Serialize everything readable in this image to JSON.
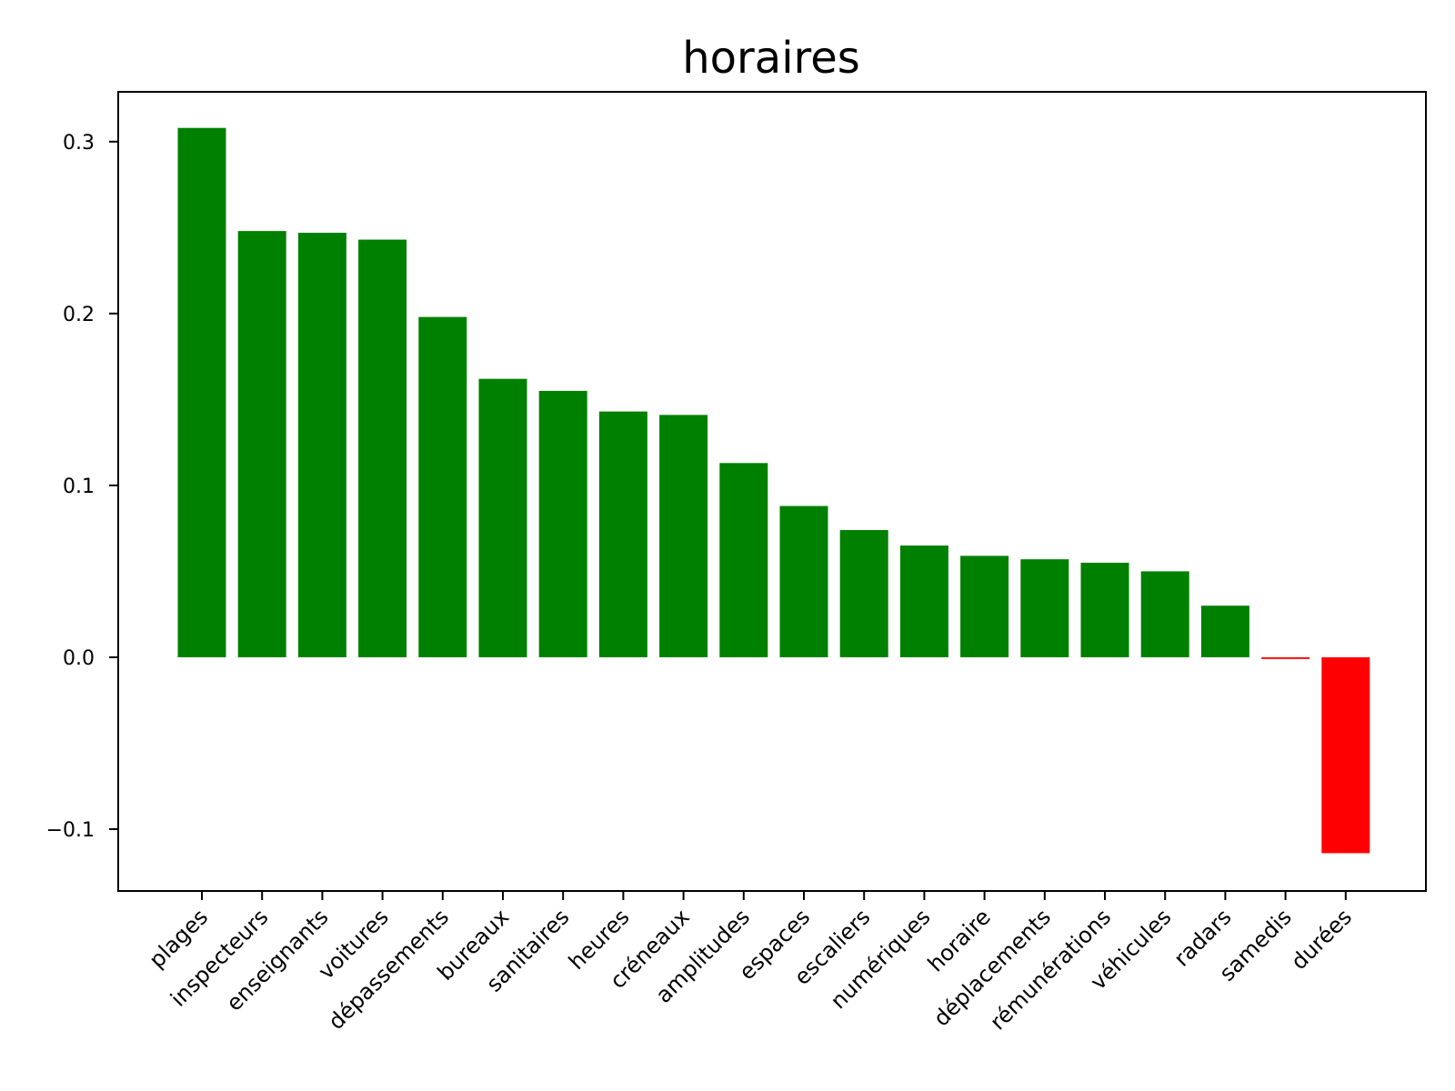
{
  "chart_data": {
    "type": "bar",
    "title": "horaires",
    "xlabel": "",
    "ylabel": "",
    "categories": [
      "plages",
      "inspecteurs",
      "enseignants",
      "voitures",
      "dépassements",
      "bureaux",
      "sanitaires",
      "heures",
      "créneaux",
      "amplitudes",
      "espaces",
      "escaliers",
      "numériques",
      "horaire",
      "déplacements",
      "rémunérations",
      "véhicules",
      "radars",
      "samedis",
      "durées"
    ],
    "values": [
      0.308,
      0.248,
      0.247,
      0.243,
      0.198,
      0.162,
      0.155,
      0.143,
      0.141,
      0.113,
      0.088,
      0.074,
      0.065,
      0.059,
      0.057,
      0.055,
      0.05,
      0.03,
      -0.001,
      -0.114
    ],
    "ylim": [
      -0.136,
      0.329
    ],
    "yticks": [
      -0.1,
      0.0,
      0.1,
      0.2,
      0.3
    ],
    "ytick_labels": [
      "−0.1",
      "0.0",
      "0.1",
      "0.2",
      "0.3"
    ],
    "positive_color": "#008000",
    "negative_color": "#ff0000",
    "grid": false,
    "legend": "none"
  }
}
